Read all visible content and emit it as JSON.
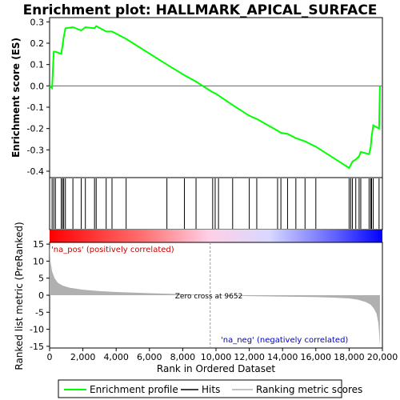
{
  "chart_data": {
    "type": "line",
    "title": "Enrichment plot: HALLMARK_APICAL_SURFACE",
    "xlabel": "Rank in Ordered Dataset",
    "es_ylabel": "Enrichment score (ES)",
    "metric_ylabel": "Ranked list metric (PreRanked)",
    "xlim": [
      0,
      20000
    ],
    "es_ylim": [
      -0.43,
      0.32
    ],
    "metric_ylim": [
      -15.5,
      15.5
    ],
    "x_ticks": [
      0,
      2000,
      4000,
      6000,
      8000,
      10000,
      12000,
      14000,
      16000,
      18000,
      20000
    ],
    "x_tick_labels": [
      "0",
      "2,000",
      "4,000",
      "6,000",
      "8,000",
      "10,000",
      "12,000",
      "14,000",
      "16,000",
      "18,000",
      "20,000"
    ],
    "es_ticks": [
      0.3,
      0.2,
      0.1,
      0.0,
      -0.1,
      -0.2,
      -0.3,
      -0.4
    ],
    "es_tick_labels": [
      "0.3",
      "0.2",
      "0.1",
      "0.0",
      "-0.1",
      "-0.2",
      "-0.3",
      "-0.4"
    ],
    "metric_ticks": [
      15,
      10,
      5,
      0,
      -5,
      -10,
      -15
    ],
    "metric_tick_labels": [
      "15",
      "10",
      "5",
      "0",
      "-5",
      "-10",
      "-15"
    ],
    "n_genes": 19850,
    "zero_cross": 9652,
    "zero_cross_label": "Zero cross at 9652",
    "pos_label": "'na_pos' (positively correlated)",
    "neg_label": "'na_neg' (negatively correlated)",
    "hits": [
      150,
      250,
      350,
      700,
      780,
      850,
      950,
      1400,
      1900,
      2150,
      2700,
      2800,
      3400,
      3750,
      4600,
      7050,
      8100,
      8800,
      9800,
      9950,
      10150,
      11000,
      12000,
      12450,
      13700,
      13900,
      14300,
      14800,
      15350,
      16000,
      18000,
      18100,
      18200,
      18400,
      18600,
      18700,
      19200,
      19300,
      19350,
      19450,
      19800
    ],
    "es_profile": {
      "x": [
        0,
        150,
        200,
        250,
        350,
        700,
        780,
        850,
        950,
        1400,
        1900,
        2150,
        2700,
        2800,
        3400,
        3750,
        4600,
        7050,
        8100,
        8800,
        9800,
        9950,
        10150,
        11000,
        12000,
        12450,
        13700,
        13900,
        14300,
        14800,
        15350,
        16000,
        18000,
        18100,
        18200,
        18400,
        18600,
        18700,
        19200,
        19300,
        19350,
        19450,
        19800,
        19850
      ],
      "y": [
        0.0,
        -0.01,
        0.08,
        0.16,
        0.16,
        0.15,
        0.19,
        0.23,
        0.27,
        0.275,
        0.26,
        0.275,
        0.27,
        0.28,
        0.255,
        0.255,
        0.22,
        0.1,
        0.05,
        0.02,
        -0.03,
        -0.035,
        -0.045,
        -0.09,
        -0.14,
        -0.155,
        -0.21,
        -0.22,
        -0.225,
        -0.245,
        -0.26,
        -0.285,
        -0.385,
        -0.37,
        -0.355,
        -0.345,
        -0.33,
        -0.31,
        -0.32,
        -0.285,
        -0.24,
        -0.185,
        -0.2,
        0.0
      ]
    },
    "metric_profile": {
      "x": [
        0,
        50,
        150,
        300,
        500,
        800,
        1200,
        2000,
        3000,
        4000,
        5000,
        6000,
        7000,
        8000,
        9000,
        9652,
        10500,
        12000,
        14000,
        16000,
        17000,
        18000,
        18500,
        19000,
        19300,
        19500,
        19650,
        19750,
        19800,
        19850
      ],
      "y": [
        15.5,
        10,
        7,
        5,
        3.6,
        2.8,
        2.2,
        1.6,
        1.2,
        0.95,
        0.75,
        0.6,
        0.45,
        0.3,
        0.15,
        0.0,
        -0.1,
        -0.25,
        -0.4,
        -0.55,
        -0.7,
        -0.95,
        -1.3,
        -2.0,
        -2.8,
        -4.0,
        -5.5,
        -8.0,
        -11.0,
        -15.0
      ]
    },
    "legend": [
      "Enrichment profile",
      "Hits",
      "Ranking metric scores"
    ],
    "colors": {
      "es_line": "#00ff00",
      "hit_line": "#000000",
      "metric_fill": "#b0b0b0",
      "zero_line": "#c8c8c8",
      "pos_label": "#cc0000",
      "neg_label": "#0000cc",
      "heat_pos": "#ff0000",
      "heat_mid": "#ffffff",
      "heat_neg": "#0000ff"
    },
    "grid": false,
    "legend_position": "bottom"
  }
}
